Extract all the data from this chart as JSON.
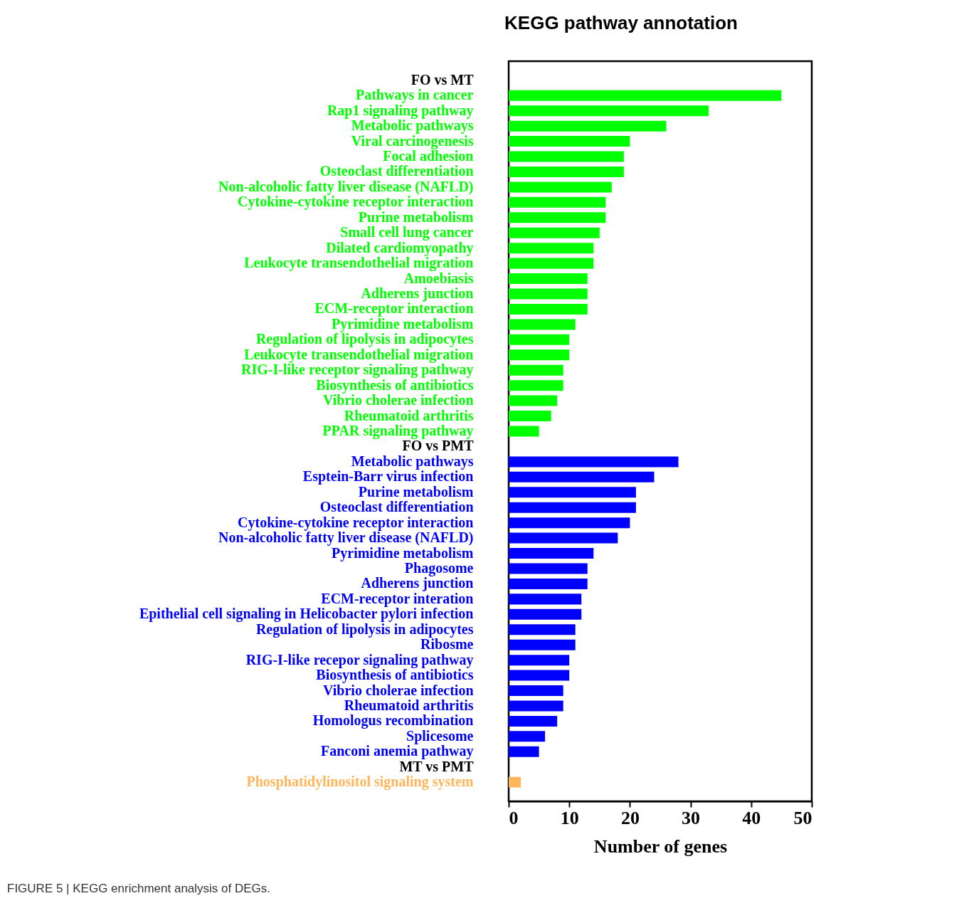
{
  "chart_data": {
    "type": "bar",
    "orientation": "horizontal",
    "title": "KEGG pathway annotation",
    "xlabel": "Number of genes",
    "categories": [
      "FO vs MT",
      "Pathways in cancer",
      "Rap1 signaling pathway",
      "Metabolic pathways",
      "Viral carcinogenesis",
      "Focal adhesion",
      "Osteoclast differentiation",
      "Non-alcoholic fatty liver disease (NAFLD)",
      "Cytokine-cytokine receptor interaction",
      "Purine metabolism",
      "Small cell lung cancer",
      "Dilated cardiomyopathy",
      "Leukocyte transendothelial migration",
      "Amoebiasis",
      "Adherens junction",
      "ECM-receptor interaction",
      "Pyrimidine metabolism",
      "Regulation of lipolysis in adipocytes",
      "Leukocyte transendothelial migration",
      "RIG-I-like receptor signaling pathway",
      "Biosynthesis of antibiotics",
      "Vibrio cholerae infection",
      "Rheumatoid arthritis",
      "PPAR signaling pathway",
      "FO vs PMT",
      "Metabolic pathways",
      "Esptein-Barr virus infection",
      "Purine metabolism",
      "Osteoclast differentiation",
      "Cytokine-cytokine receptor interaction",
      "Non-alcoholic fatty liver disease (NAFLD)",
      "Pyrimidine metabolism",
      "Phagosome",
      "Adherens junction",
      "ECM-receptor interation",
      "Epithelial cell signaling in Helicobacter pylori infection",
      "Regulation of lipolysis in adipocytes",
      "Ribosme",
      "RIG-I-like recepor signaling pathway",
      "Biosynthesis of antibiotics",
      "Vibrio cholerae infection",
      "Rheumatoid arthritis",
      "Homologus recombination",
      "Splicesome",
      "Fanconi anemia pathway",
      "MT vs PMT",
      "Phosphatidylinositol signaling system"
    ],
    "series": [
      {
        "color": "#00ff00",
        "values": [
          null,
          45,
          33,
          26,
          20,
          19,
          19,
          17,
          16,
          16,
          15,
          14,
          14,
          13,
          13,
          13,
          11,
          10,
          10,
          9,
          9,
          8,
          7,
          5,
          null,
          null,
          null,
          null,
          null,
          null,
          null,
          null,
          null,
          null,
          null,
          null,
          null,
          null,
          null,
          null,
          null,
          null,
          null,
          null,
          null,
          null,
          null
        ]
      },
      {
        "color": "#0000ff",
        "values": [
          null,
          null,
          null,
          null,
          null,
          null,
          null,
          null,
          null,
          null,
          null,
          null,
          null,
          null,
          null,
          null,
          null,
          null,
          null,
          null,
          null,
          null,
          null,
          null,
          null,
          28,
          24,
          21,
          21,
          20,
          18,
          14,
          13,
          13,
          12,
          12,
          11,
          11,
          10,
          10,
          9,
          9,
          8,
          6,
          5,
          null,
          null
        ]
      },
      {
        "color": "#ffb55a",
        "values": [
          null,
          null,
          null,
          null,
          null,
          null,
          null,
          null,
          null,
          null,
          null,
          null,
          null,
          null,
          null,
          null,
          null,
          null,
          null,
          null,
          null,
          null,
          null,
          null,
          null,
          null,
          null,
          null,
          null,
          null,
          null,
          null,
          null,
          null,
          null,
          null,
          null,
          null,
          null,
          null,
          null,
          null,
          null,
          null,
          null,
          null,
          2
        ]
      }
    ],
    "xlim": [
      0,
      50
    ],
    "xticks": [
      0,
      10,
      20,
      30,
      40,
      50
    ],
    "grid": false,
    "legend": false,
    "annotations": [
      "FIGURE 5 | KEGG enrichment analysis of DEGs."
    ]
  }
}
